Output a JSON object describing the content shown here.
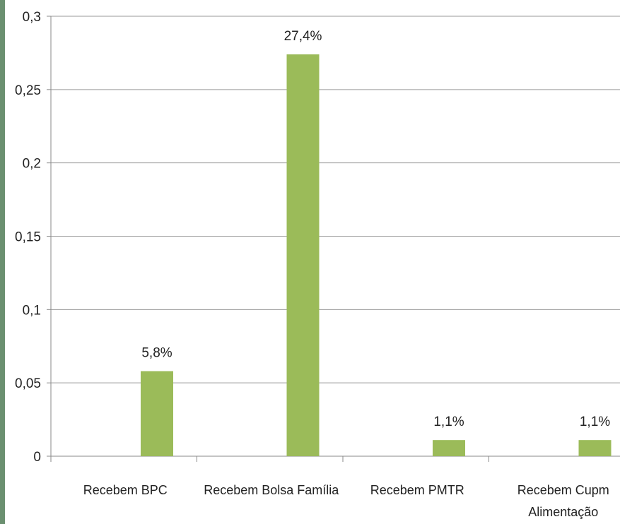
{
  "colors": {
    "bar": "#9bbb59",
    "grid": "#9a9a9a",
    "axis": "#8a8a8a",
    "accent_strip": "#6b9070"
  },
  "chart_data": {
    "type": "bar",
    "categories": [
      [
        "Recebem BPC"
      ],
      [
        "Recebem Bolsa Família"
      ],
      [
        "Recebem PMTR"
      ],
      [
        "Recebem Cupm",
        "Alimentação"
      ]
    ],
    "values": [
      0.058,
      0.274,
      0.011,
      0.011
    ],
    "data_labels": [
      "5,8%",
      "27,4%",
      "1,1%",
      "1,1%"
    ],
    "y_ticks": [
      {
        "value": 0,
        "label": "0"
      },
      {
        "value": 0.05,
        "label": "0,05"
      },
      {
        "value": 0.1,
        "label": "0,1"
      },
      {
        "value": 0.15,
        "label": "0,15"
      },
      {
        "value": 0.2,
        "label": "0,2"
      },
      {
        "value": 0.25,
        "label": "0,25"
      },
      {
        "value": 0.3,
        "label": "0,3"
      }
    ],
    "ylim": [
      0,
      0.3
    ],
    "grid": true,
    "legend": "none",
    "title": "",
    "xlabel": "",
    "ylabel": ""
  }
}
